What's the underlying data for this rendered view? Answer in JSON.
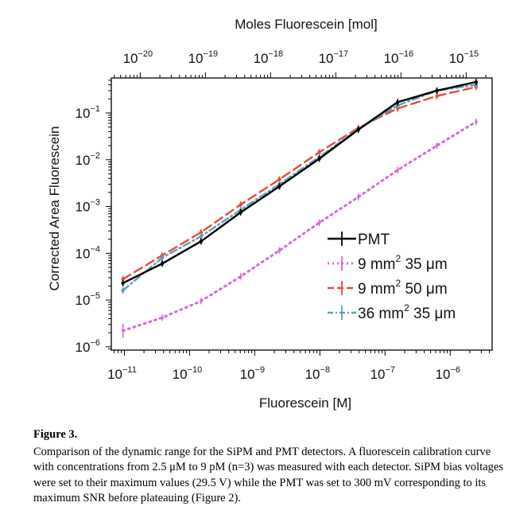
{
  "figure": {
    "label": "Figure 3.",
    "caption": "Comparison of the dynamic range for the SiPM and PMT detectors. A fluorescein calibration curve with concentrations from 2.5 μM to 9 pM (n=3) was measured with each detector. SiPM bias voltages were set to their maximum values (29.5 V) while the PMT was set to 300 mV corresponding to its maximum SNR before plateauing (Figure 2)."
  },
  "chart_data": {
    "type": "line",
    "xlabel": "Fluorescein [M]",
    "ylabel": "Corrected Area Fluorescein",
    "x2label": "Moles Fluorescein [mol]",
    "xscale": "log",
    "yscale": "log",
    "xlim": [
      6.3e-12,
      4.4e-06
    ],
    "ylim": [
      8.5e-07,
      0.56
    ],
    "x2lim": [
      3.6e-21,
      2.5e-15
    ],
    "grid": false,
    "legend_position": "lower-right",
    "x_ticks": [
      {
        "base": "10",
        "exp": "−11"
      },
      {
        "base": "10",
        "exp": "−10"
      },
      {
        "base": "10",
        "exp": "−9"
      },
      {
        "base": "10",
        "exp": "−8"
      },
      {
        "base": "10",
        "exp": "−7"
      },
      {
        "base": "10",
        "exp": "−6"
      }
    ],
    "y_ticks": [
      {
        "base": "10",
        "exp": "−1"
      },
      {
        "base": "10",
        "exp": "−2"
      },
      {
        "base": "10",
        "exp": "−3"
      },
      {
        "base": "10",
        "exp": "−4"
      },
      {
        "base": "10",
        "exp": "−5"
      },
      {
        "base": "10",
        "exp": "−6"
      }
    ],
    "x2_ticks": [
      {
        "base": "10",
        "exp": "−20"
      },
      {
        "base": "10",
        "exp": "−19"
      },
      {
        "base": "10",
        "exp": "−18"
      },
      {
        "base": "10",
        "exp": "−17"
      },
      {
        "base": "10",
        "exp": "−16"
      },
      {
        "base": "10",
        "exp": "−15"
      }
    ],
    "x": [
      9.5e-12,
      3.8e-11,
      1.5e-10,
      6.1e-10,
      2.4e-09,
      9.8e-09,
      3.9e-08,
      1.56e-07,
      6.25e-07,
      2.5e-06
    ],
    "series": [
      {
        "name": "PMT",
        "label_parts": {
          "pre": "PMT",
          "sup": "",
          "post": ""
        },
        "color": "#000000",
        "style": "solid",
        "values": [
          2.3e-05,
          6e-05,
          0.00018,
          0.00075,
          0.0027,
          0.0105,
          0.044,
          0.17,
          0.3,
          0.46
        ]
      },
      {
        "name": "9 mm2 35 μm",
        "label_parts": {
          "pre": "9 mm",
          "sup": "2",
          "post": " 35 μm"
        },
        "color": "#d66bd6",
        "style": "dotted",
        "values": [
          2.2e-06,
          4.2e-06,
          9.5e-06,
          3.2e-05,
          0.000115,
          0.00045,
          0.0016,
          0.006,
          0.02,
          0.065
        ]
      },
      {
        "name": "9 mm2 50 μm",
        "label_parts": {
          "pre": "9 mm",
          "sup": "2",
          "post": " 50 μm"
        },
        "color": "#e8493c",
        "style": "dashed",
        "values": [
          2.8e-05,
          9e-05,
          0.00028,
          0.0011,
          0.0038,
          0.0145,
          0.048,
          0.125,
          0.23,
          0.36
        ]
      },
      {
        "name": "36 mm2 35 μm",
        "label_parts": {
          "pre": "36 mm",
          "sup": "2",
          "post": " 35 μm"
        },
        "color": "#5b9fb5",
        "style": "dashdot",
        "values": [
          1.6e-05,
          8e-05,
          0.00023,
          0.00085,
          0.003,
          0.0115,
          0.045,
          0.145,
          0.3,
          0.4
        ]
      }
    ]
  }
}
